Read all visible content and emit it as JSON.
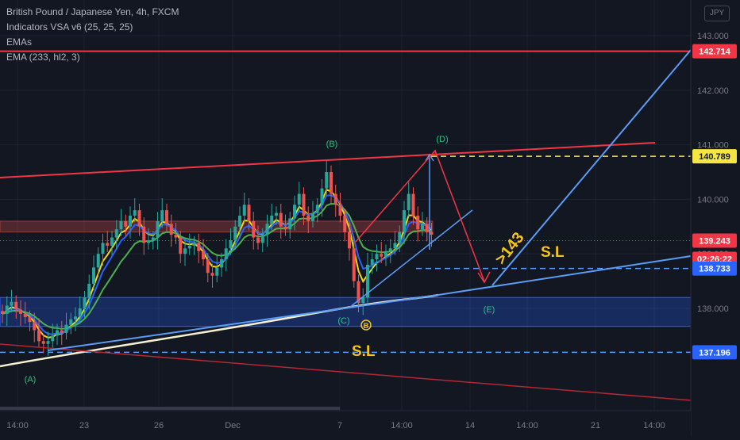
{
  "legend": {
    "symbol_line": "British Pound / Japanese Yen, 4h, FXCM",
    "indicator_1": "Indicators VSA v6 (25, 25, 25)",
    "indicator_2": "EMAs",
    "indicator_3": "EMA (233, hl2, 3)"
  },
  "currency_label": "JPY",
  "colors": {
    "background": "#131722",
    "grid": "#1e222d",
    "axis_text": "#b2b5be",
    "candle_up": "#26a69a",
    "candle_down": "#ef5350",
    "red_line": "#f23645",
    "blue_line": "#5b9cf6",
    "yellow_dashed": "#f5e642",
    "ema_slow": "#f5f0cf",
    "ema_yellow": "#f5d90a",
    "ema_blue": "#2962ff",
    "ema_green": "#4caf50",
    "annotation_yellow": "#f5c518",
    "wave_label_green": "#26c281"
  },
  "chart_data": {
    "type": "candlestick",
    "x_ticks": [
      "14:00",
      "23",
      "26",
      "Dec",
      "7",
      "14:00",
      "14",
      "14:00",
      "21",
      "14:00"
    ],
    "y_ticks": [
      143.0,
      142.0,
      141.0,
      140.0,
      139.0,
      138.0
    ],
    "y_tick_labels": [
      "143.000",
      "142.000",
      "141.000",
      "140.000",
      "139.000",
      "138.000"
    ],
    "ylim": [
      136.1,
      143.4
    ],
    "price_labels": [
      {
        "label": "142.714",
        "value": 142.714,
        "color": "#f23645"
      },
      {
        "label": "140.789",
        "value": 140.789,
        "color": "#f5e642"
      },
      {
        "label": "139.243",
        "value": 139.243,
        "color": "#f23645"
      },
      {
        "label": "02:26:22",
        "value": 138.99,
        "color": "#f23645"
      },
      {
        "label": "138.733",
        "value": 138.733,
        "color": "#2962ff"
      },
      {
        "label": "137.196",
        "value": 137.196,
        "color": "#2962ff"
      }
    ],
    "horizontal_levels": [
      {
        "value": 142.714,
        "style": "solid",
        "color": "#f23645"
      },
      {
        "value": 140.789,
        "style": "dashed",
        "color": "#f5e642"
      },
      {
        "value": 138.733,
        "style": "dashed",
        "color": "#5b9cf6"
      },
      {
        "value": 137.196,
        "style": "dashed",
        "color": "#5b9cf6"
      },
      {
        "value": 139.243,
        "style": "dotted",
        "color": "#f23645"
      }
    ],
    "zones": [
      {
        "name": "supply-zone",
        "from": 139.4,
        "to": 139.6
      },
      {
        "name": "demand-zone",
        "from": 137.67,
        "to": 138.2
      }
    ],
    "wave_labels": [
      "(A)",
      "(B)",
      "(C)",
      "(D)",
      "(E)"
    ],
    "annotations": {
      "target_text": ">143",
      "stop_loss_text_1": "S.L",
      "stop_loss_text_2": "S.L",
      "info_glyph": "Ⓑ"
    },
    "candles": {
      "closes": [
        137.9,
        138.05,
        138.12,
        137.98,
        137.9,
        137.84,
        137.75,
        137.6,
        137.4,
        137.35,
        137.4,
        137.5,
        137.6,
        137.55,
        137.7,
        137.8,
        137.85,
        138.0,
        138.2,
        138.45,
        138.75,
        139.0,
        139.2,
        139.15,
        139.3,
        139.45,
        139.6,
        139.5,
        139.7,
        139.8,
        139.5,
        139.2,
        139.25,
        139.3,
        139.6,
        139.8,
        139.55,
        139.35,
        139.3,
        139.0,
        139.1,
        139.15,
        139.2,
        139.05,
        138.9,
        138.65,
        138.6,
        138.75,
        138.9,
        139.1,
        139.25,
        139.5,
        139.7,
        139.9,
        139.6,
        139.3,
        139.2,
        139.35,
        139.55,
        139.7,
        139.75,
        139.5,
        139.45,
        139.65,
        139.9,
        140.1,
        139.7,
        139.6,
        139.75,
        139.9,
        140.2,
        140.5,
        140.1,
        139.9,
        139.7,
        139.4,
        139.1,
        138.5,
        138.1,
        138.2,
        138.8,
        138.9,
        139.0,
        138.95,
        139.05,
        139.1,
        139.2,
        139.4,
        139.8,
        140.1,
        139.7,
        139.45,
        139.55,
        139.4,
        139.35
      ],
      "x_start": 0,
      "x_step": 5.8
    }
  }
}
